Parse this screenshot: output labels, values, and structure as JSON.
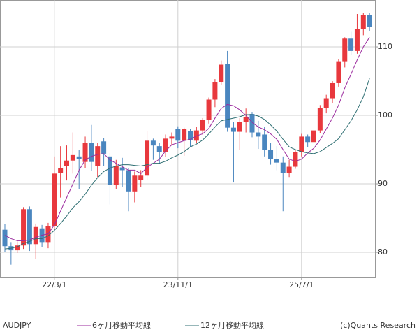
{
  "chart_data": {
    "type": "candlestick",
    "title": "AUDJPY",
    "credit": "(c)Quants Research",
    "categories": [
      null,
      null,
      null,
      null,
      null,
      null,
      null,
      null,
      "22/3/1",
      null,
      null,
      null,
      null,
      null,
      null,
      null,
      null,
      null,
      null,
      null,
      null,
      null,
      null,
      null,
      null,
      null,
      null,
      null,
      "23/11/1",
      null,
      null,
      null,
      null,
      null,
      null,
      null,
      null,
      null,
      null,
      null,
      null,
      null,
      null,
      null,
      null,
      null,
      null,
      null,
      "25/7/1",
      null,
      null,
      null,
      null,
      null,
      null,
      null,
      null,
      null,
      null,
      null
    ],
    "open": [
      83.3,
      80.9,
      80.3,
      81.0,
      86.3,
      81.2,
      83.5,
      81.5,
      83.8,
      91.6,
      92.6,
      93.4,
      94.0,
      93.2,
      96.0,
      92.6,
      96.2,
      94.0,
      89.8,
      92.4,
      92.0,
      88.9,
      90.6,
      91.2,
      96.3,
      95.5,
      94.6,
      96.6,
      98.0,
      96.3,
      97.7,
      96.3,
      97.8,
      99.3,
      102.3,
      104.9,
      107.5,
      98.2,
      97.6,
      99.0,
      100.2,
      97.5,
      97.2,
      95.0,
      93.6,
      93.1,
      91.6,
      92.5,
      94.6,
      96.9,
      96.1,
      97.8,
      101.1,
      102.5,
      104.7,
      107.9,
      111.2,
      109.4,
      112.6,
      114.6
    ],
    "high": [
      84.1,
      81.5,
      81.6,
      86.6,
      86.7,
      84.2,
      84.0,
      84.3,
      94.0,
      95.5,
      95.6,
      97.5,
      95.0,
      96.9,
      98.6,
      96.0,
      96.7,
      94.5,
      93.5,
      93.8,
      92.3,
      91.8,
      92.0,
      97.7,
      96.6,
      96.0,
      97.2,
      97.5,
      98.4,
      98.2,
      98.0,
      98.3,
      99.6,
      102.6,
      105.3,
      108.0,
      109.4,
      99.0,
      99.6,
      101.0,
      100.5,
      99.2,
      98.3,
      96.0,
      95.5,
      94.0,
      93.5,
      95.0,
      97.3,
      97.2,
      98.4,
      101.5,
      103.0,
      105.0,
      108.2,
      111.4,
      112.2,
      114.8,
      115.0,
      115.0
    ],
    "low": [
      80.1,
      78.2,
      79.9,
      80.5,
      80.2,
      79.0,
      80.8,
      80.6,
      83.4,
      88.0,
      90.5,
      91.5,
      89.2,
      92.3,
      91.9,
      91.0,
      92.6,
      87.0,
      89.2,
      89.6,
      86.0,
      87.3,
      89.5,
      90.6,
      93.5,
      93.0,
      93.9,
      95.6,
      95.2,
      94.1,
      95.4,
      95.9,
      97.2,
      98.8,
      101.2,
      104.5,
      97.6,
      90.2,
      95.0,
      97.5,
      96.8,
      95.1,
      94.0,
      92.8,
      92.0,
      86.0,
      91.0,
      92.2,
      94.0,
      95.4,
      95.8,
      97.4,
      100.3,
      101.8,
      104.2,
      107.0,
      108.8,
      109.0,
      111.7,
      112.3
    ],
    "close": [
      80.9,
      80.3,
      81.0,
      86.3,
      81.2,
      83.7,
      81.5,
      83.8,
      91.5,
      92.3,
      93.4,
      94.2,
      93.6,
      96.0,
      93.2,
      95.5,
      94.4,
      89.8,
      92.6,
      92.0,
      88.9,
      91.2,
      91.2,
      96.3,
      95.6,
      94.6,
      96.6,
      96.9,
      96.3,
      98.0,
      96.4,
      97.8,
      99.3,
      102.3,
      104.9,
      107.4,
      98.2,
      97.6,
      99.0,
      99.8,
      97.5,
      96.9,
      95.0,
      93.6,
      93.1,
      91.6,
      92.5,
      94.6,
      96.9,
      96.1,
      97.8,
      101.1,
      102.5,
      104.7,
      107.9,
      111.2,
      109.4,
      112.6,
      114.6,
      112.9
    ],
    "up_color": "#e8383d",
    "down_color": "#4a86bf",
    "series": [
      {
        "name": "6ヶ月移動平均線",
        "color": "#9b2a9e",
        "values": [
          82.5,
          82.0,
          81.7,
          81.7,
          81.8,
          82.2,
          82.5,
          82.7,
          84.0,
          86.0,
          88.0,
          90.0,
          92.0,
          93.5,
          94.0,
          94.3,
          94.4,
          93.5,
          93.0,
          92.5,
          92.0,
          92.0,
          91.5,
          92.4,
          93.0,
          93.6,
          94.8,
          95.7,
          96.0,
          96.3,
          96.5,
          97.0,
          97.3,
          98.1,
          99.6,
          101.0,
          101.6,
          101.4,
          100.8,
          100.0,
          99.0,
          98.3,
          97.9,
          97.3,
          96.5,
          95.0,
          93.6,
          93.3,
          93.6,
          94.5,
          95.2,
          96.4,
          98.0,
          99.6,
          101.5,
          104.0,
          106.0,
          108.1,
          110.0,
          111.4
        ]
      },
      {
        "name": "12ヶ月移動平均線",
        "color": "#2f6f73",
        "values": [
          80.5,
          80.6,
          80.8,
          81.3,
          81.6,
          82.0,
          82.0,
          82.4,
          83.2,
          84.2,
          85.3,
          86.5,
          87.4,
          88.5,
          89.8,
          90.9,
          91.8,
          92.3,
          92.6,
          92.8,
          92.8,
          92.7,
          92.6,
          92.8,
          93.0,
          93.0,
          93.3,
          93.8,
          94.2,
          94.7,
          95.4,
          95.8,
          96.4,
          97.3,
          98.3,
          99.2,
          99.4,
          99.6,
          99.8,
          100.1,
          100.1,
          99.9,
          99.4,
          98.6,
          97.7,
          96.5,
          95.4,
          95.0,
          94.7,
          94.5,
          94.4,
          94.7,
          95.3,
          95.9,
          96.6,
          97.9,
          99.2,
          100.8,
          102.7,
          105.4
        ]
      }
    ],
    "ylim": [
      76.33,
      116.84
    ],
    "yticks": [
      80,
      90,
      100,
      110
    ],
    "grid": true
  }
}
